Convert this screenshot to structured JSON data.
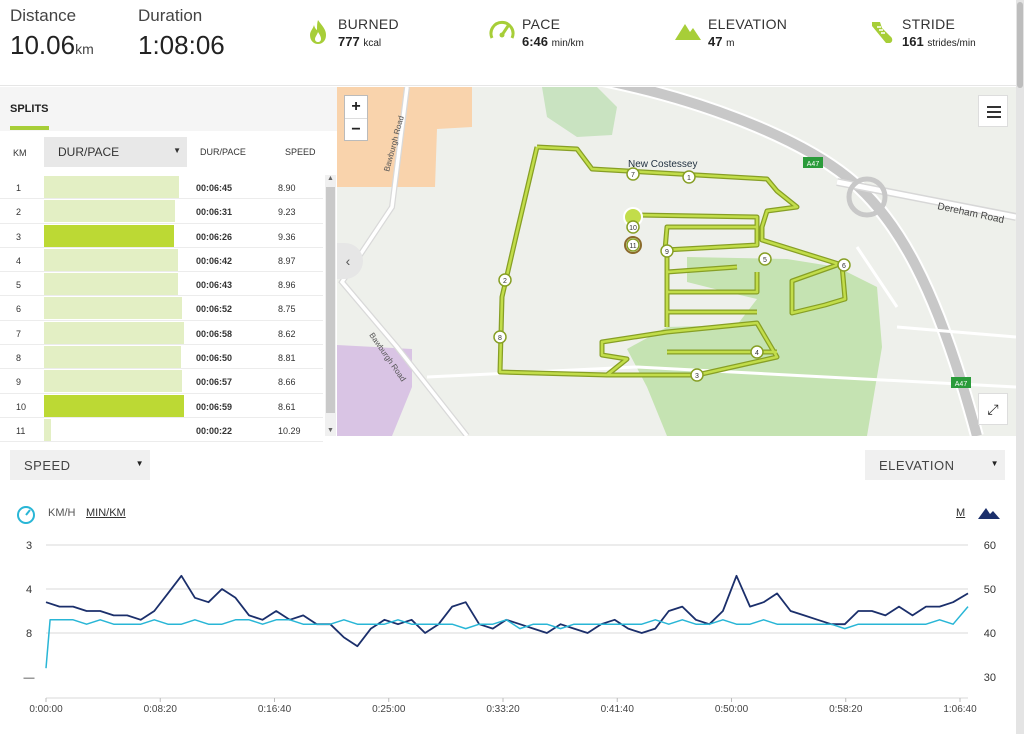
{
  "header": {
    "distance_label": "Distance",
    "distance_value": "10.06",
    "distance_unit": "km",
    "duration_label": "Duration",
    "duration_value": "1:08:06"
  },
  "metrics": [
    {
      "label": "BURNED",
      "value": "777",
      "unit": "kcal",
      "icon": "flame-icon"
    },
    {
      "label": "PACE",
      "value": "6:46",
      "unit": "min/km",
      "icon": "gauge-icon"
    },
    {
      "label": "ELEVATION",
      "value": "47",
      "unit": "m",
      "icon": "mountain-icon"
    },
    {
      "label": "STRIDE",
      "value": "161",
      "unit": "strides/min",
      "icon": "shoe-icon"
    }
  ],
  "splits": {
    "tab_label": "SPLITS",
    "col_km": "KM",
    "col_select": "DUR/PACE",
    "col_pace": "DUR/PACE",
    "col_speed": "SPEED",
    "rows": [
      {
        "km": "1",
        "pace": "00:06:45",
        "speed": "8.90",
        "fill": 0.87,
        "highlight": false
      },
      {
        "km": "2",
        "pace": "00:06:31",
        "speed": "9.23",
        "fill": 0.84,
        "highlight": false
      },
      {
        "km": "3",
        "pace": "00:06:26",
        "speed": "9.36",
        "fill": 0.83,
        "highlight": true
      },
      {
        "km": "4",
        "pace": "00:06:42",
        "speed": "8.97",
        "fill": 0.86,
        "highlight": false
      },
      {
        "km": "5",
        "pace": "00:06:43",
        "speed": "8.96",
        "fill": 0.86,
        "highlight": false
      },
      {
        "km": "6",
        "pace": "00:06:52",
        "speed": "8.75",
        "fill": 0.89,
        "highlight": false
      },
      {
        "km": "7",
        "pace": "00:06:58",
        "speed": "8.62",
        "fill": 0.9,
        "highlight": false
      },
      {
        "km": "8",
        "pace": "00:06:50",
        "speed": "8.81",
        "fill": 0.88,
        "highlight": false
      },
      {
        "km": "9",
        "pace": "00:06:57",
        "speed": "8.66",
        "fill": 0.89,
        "highlight": false
      },
      {
        "km": "10",
        "pace": "00:06:59",
        "speed": "8.61",
        "fill": 0.9,
        "highlight": true
      },
      {
        "km": "11",
        "pace": "00:00:22",
        "speed": "10.29",
        "fill": 0.05,
        "highlight": false
      }
    ]
  },
  "map": {
    "zoom_in": "+",
    "zoom_out": "−",
    "labels": {
      "town": "New Costessey",
      "road1": "Dereham Road",
      "road2": "Bawburgh Road",
      "road3": "Bawburgh Road",
      "shield1": "A47",
      "shield2": "A47"
    },
    "markers": [
      "1",
      "2",
      "3",
      "4",
      "5",
      "6",
      "7",
      "8",
      "9",
      "10",
      "11"
    ]
  },
  "controls": {
    "left_select": "SPEED",
    "right_select": "ELEVATION",
    "unit_kmh": "KM/H",
    "unit_minkm": "MIN/KM",
    "unit_m": "M"
  },
  "colors": {
    "accent_green": "#a7ce38",
    "speed_line": "#29b6d6",
    "elevation_line": "#1b2f6b"
  },
  "chart_data": {
    "type": "line",
    "x_ticks": [
      "0:00:00",
      "0:08:20",
      "0:16:40",
      "0:25:00",
      "0:33:20",
      "0:41:40",
      "0:50:00",
      "0:58:20",
      "1:06:40"
    ],
    "left_ticks": [
      "3",
      "4",
      "8",
      "—"
    ],
    "right_ticks": [
      "60",
      "50",
      "40",
      "30"
    ],
    "xlim_minutes": [
      0,
      68.1
    ],
    "elevation_ylim": [
      30,
      60
    ],
    "series": [
      {
        "name": "ELEVATION",
        "axis": "right",
        "x_minutes": [
          0,
          1,
          2,
          3,
          4,
          5,
          6,
          7,
          8,
          9,
          10,
          11,
          12,
          13,
          14,
          15,
          16,
          17,
          18,
          19,
          20,
          21,
          22,
          23,
          24,
          25,
          26,
          27,
          28,
          29,
          30,
          31,
          32,
          33,
          34,
          35,
          36,
          37,
          38,
          39,
          40,
          41,
          42,
          43,
          44,
          45,
          46,
          47,
          48,
          49,
          50,
          51,
          52,
          53,
          54,
          55,
          56,
          57,
          58,
          59,
          60,
          61,
          62,
          63,
          64,
          65,
          66,
          67,
          68.1
        ],
        "values": [
          47,
          46,
          46,
          45,
          45,
          44,
          44,
          43,
          45,
          49,
          53,
          48,
          47,
          50,
          48,
          44,
          43,
          45,
          43,
          44,
          42,
          42,
          39,
          37,
          41,
          43,
          42,
          43,
          40,
          42,
          46,
          47,
          42,
          41,
          43,
          42,
          41,
          40,
          42,
          41,
          40,
          42,
          43,
          41,
          40,
          41,
          45,
          46,
          43,
          42,
          45,
          53,
          46,
          47,
          49,
          45,
          44,
          43,
          42,
          42,
          45,
          45,
          44,
          46,
          44,
          46,
          46,
          47,
          49
        ]
      },
      {
        "name": "SPEED",
        "axis": "left",
        "x_minutes": [
          0,
          0.3,
          1,
          2,
          3,
          4,
          5,
          6,
          7,
          8,
          9,
          10,
          11,
          12,
          13,
          14,
          15,
          16,
          17,
          18,
          19,
          20,
          21,
          22,
          23,
          24,
          25,
          26,
          27,
          28,
          29,
          30,
          31,
          32,
          33,
          34,
          35,
          36,
          37,
          38,
          39,
          40,
          41,
          42,
          43,
          44,
          45,
          46,
          47,
          48,
          49,
          50,
          51,
          52,
          53,
          54,
          55,
          56,
          57,
          58,
          59,
          60,
          61,
          62,
          63,
          64,
          65,
          66,
          67,
          68.1
        ],
        "values": [
          32,
          43,
          43,
          43,
          42,
          43,
          42,
          42,
          42,
          43,
          42,
          42,
          43,
          42,
          42,
          43,
          43,
          42,
          43,
          43,
          42,
          42,
          42,
          43,
          42,
          42,
          42,
          43,
          42,
          42,
          42,
          42,
          41,
          42,
          42,
          43,
          41,
          42,
          42,
          41,
          42,
          42,
          42,
          42,
          42,
          42,
          43,
          42,
          43,
          42,
          42,
          43,
          42,
          42,
          43,
          42,
          42,
          42,
          42,
          42,
          41,
          42,
          42,
          42,
          42,
          42,
          42,
          43,
          42,
          46
        ]
      }
    ]
  }
}
